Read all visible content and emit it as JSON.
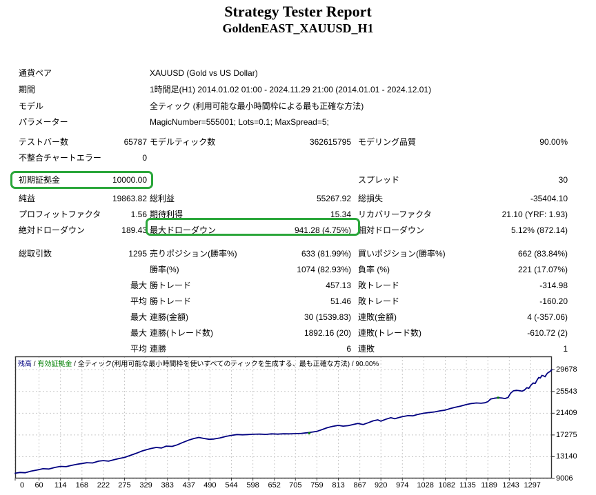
{
  "title": "Strategy Tester Report",
  "subtitle": "GoldenEAST_XAUUSD_H1",
  "colors": {
    "highlight_green": "#2aa63a",
    "balance_line": "#000080",
    "equity_green": "#008000",
    "grid": "#c9c9c9",
    "chart_border": "#333333"
  },
  "info_rows": [
    {
      "label": "通貨ペア",
      "value": "XAUUSD (Gold vs US Dollar)"
    },
    {
      "label": "期間",
      "value": "1時間足(H1) 2014.01.02 01:00 - 2024.11.29 21:00 (2014.01.01 - 2024.12.01)"
    },
    {
      "label": "モデル",
      "value": "全ティック (利用可能な最小時間枠による最も正確な方法)"
    },
    {
      "label": "パラメーター",
      "value": "MagicNumber=555001; Lots=0.1; MaxSpread=5;"
    }
  ],
  "stat_rows": [
    {
      "cells": [
        "テストバー数",
        "65787",
        "モデルティック数",
        "362615795",
        "モデリング品質",
        "90.00%"
      ],
      "gap": ""
    },
    {
      "cells": [
        "不整合チャートエラー",
        "0",
        "",
        "",
        "",
        ""
      ],
      "gap": ""
    },
    {
      "cells": [
        "初期証拠金",
        "10000.00",
        "",
        "",
        "スプレッド",
        "30"
      ],
      "gap": "gap9"
    },
    {
      "cells": [
        "純益",
        "19863.82",
        "総利益",
        "55267.92",
        "総損失",
        "-35404.10"
      ],
      "gap": "gap4"
    },
    {
      "cells": [
        "プロフィットファクタ",
        "1.56",
        "期待利得",
        "15.34",
        "リカバリーファクタ",
        "21.10 (YRF: 1.93)"
      ],
      "gap": ""
    },
    {
      "cells": [
        "絶対ドローダウン",
        "189.43",
        "最大ドローダウン",
        "941.28 (4.75%)",
        "相対ドローダウン",
        "5.12% (872.14)"
      ],
      "gap": ""
    },
    {
      "cells": [
        "総取引数",
        "1295",
        "売りポジション(勝率%)",
        "633 (81.99%)",
        "買いポジション(勝率%)",
        "662 (83.84%)"
      ],
      "gap": "gap11"
    },
    {
      "cells": [
        "",
        "",
        "勝率(%)",
        "1074 (82.93%)",
        "負率 (%)",
        "221 (17.07%)"
      ],
      "gap": ""
    },
    {
      "cells": [
        "",
        "最大",
        "勝トレード",
        "457.13",
        "敗トレード",
        "-314.98"
      ],
      "gap": ""
    },
    {
      "cells": [
        "",
        "平均",
        "勝トレード",
        "51.46",
        "敗トレード",
        "-160.20"
      ],
      "gap": ""
    },
    {
      "cells": [
        "",
        "最大",
        "連勝(金額)",
        "30 (1539.83)",
        "連敗(金額)",
        "4 (-357.06)"
      ],
      "gap": ""
    },
    {
      "cells": [
        "",
        "最大",
        "連勝(トレード数)",
        "1892.16 (20)",
        "連敗(トレード数)",
        "-610.72 (2)"
      ],
      "gap": ""
    },
    {
      "cells": [
        "",
        "平均",
        "連勝",
        "6",
        "連敗",
        "1"
      ],
      "gap": ""
    }
  ],
  "chart_data": {
    "type": "line",
    "title_segments": [
      {
        "text": "残高",
        "color": "#000080"
      },
      {
        "text": " / ",
        "color": "#000000"
      },
      {
        "text": "有効証拠金",
        "color": "#008000"
      },
      {
        "text": " / ",
        "color": "#000000"
      },
      {
        "text": "全ティック(利用可能な最小時間枠を使いすべてのティックを生成する、最も正確な方法) / 90.00%",
        "color": "#000000"
      }
    ],
    "xlabel": "",
    "ylabel": "",
    "x_ticks": [
      0,
      60,
      114,
      168,
      222,
      275,
      329,
      383,
      437,
      490,
      544,
      598,
      652,
      705,
      759,
      813,
      867,
      920,
      974,
      1028,
      1082,
      1135,
      1189,
      1243,
      1297
    ],
    "y_ticks": [
      9006,
      13140,
      17275,
      21409,
      25543,
      29678
    ],
    "x_range": [
      0,
      1350
    ],
    "y_range": [
      9006,
      32200
    ],
    "grid": "dashed",
    "series": [
      {
        "name": "残高",
        "color": "#000080",
        "points": [
          [
            0,
            10000
          ],
          [
            12,
            10150
          ],
          [
            25,
            10100
          ],
          [
            40,
            10400
          ],
          [
            55,
            10600
          ],
          [
            70,
            10850
          ],
          [
            85,
            10800
          ],
          [
            100,
            11100
          ],
          [
            114,
            11300
          ],
          [
            128,
            11250
          ],
          [
            142,
            11500
          ],
          [
            156,
            11700
          ],
          [
            168,
            11850
          ],
          [
            180,
            12000
          ],
          [
            195,
            11950
          ],
          [
            210,
            12300
          ],
          [
            222,
            12400
          ],
          [
            235,
            12300
          ],
          [
            250,
            12600
          ],
          [
            262,
            12800
          ],
          [
            275,
            13000
          ],
          [
            290,
            13400
          ],
          [
            305,
            13800
          ],
          [
            318,
            14200
          ],
          [
            329,
            14450
          ],
          [
            342,
            14700
          ],
          [
            355,
            14900
          ],
          [
            368,
            14800
          ],
          [
            380,
            15150
          ],
          [
            395,
            15100
          ],
          [
            408,
            15400
          ],
          [
            420,
            15800
          ],
          [
            437,
            16300
          ],
          [
            450,
            16600
          ],
          [
            462,
            16800
          ],
          [
            475,
            16600
          ],
          [
            488,
            16450
          ],
          [
            500,
            16500
          ],
          [
            515,
            16700
          ],
          [
            530,
            17000
          ],
          [
            544,
            17200
          ],
          [
            558,
            17350
          ],
          [
            572,
            17300
          ],
          [
            586,
            17350
          ],
          [
            598,
            17400
          ],
          [
            615,
            17450
          ],
          [
            630,
            17380
          ],
          [
            645,
            17480
          ],
          [
            660,
            17430
          ],
          [
            675,
            17500
          ],
          [
            690,
            17480
          ],
          [
            705,
            17520
          ],
          [
            720,
            17580
          ],
          [
            735,
            17700
          ],
          [
            750,
            17850
          ],
          [
            759,
            17950
          ],
          [
            772,
            18300
          ],
          [
            785,
            18650
          ],
          [
            798,
            18900
          ],
          [
            813,
            19100
          ],
          [
            825,
            18950
          ],
          [
            838,
            19050
          ],
          [
            850,
            19250
          ],
          [
            862,
            19450
          ],
          [
            875,
            19250
          ],
          [
            888,
            19600
          ],
          [
            900,
            19950
          ],
          [
            912,
            20150
          ],
          [
            920,
            19900
          ],
          [
            932,
            20250
          ],
          [
            945,
            20550
          ],
          [
            955,
            20350
          ],
          [
            966,
            20600
          ],
          [
            974,
            20750
          ],
          [
            988,
            20950
          ],
          [
            1000,
            20900
          ],
          [
            1012,
            21150
          ],
          [
            1028,
            21400
          ],
          [
            1042,
            21550
          ],
          [
            1055,
            21650
          ],
          [
            1068,
            21850
          ],
          [
            1082,
            22000
          ],
          [
            1095,
            22300
          ],
          [
            1108,
            22550
          ],
          [
            1120,
            22750
          ],
          [
            1135,
            23050
          ],
          [
            1148,
            23250
          ],
          [
            1160,
            23350
          ],
          [
            1172,
            23300
          ],
          [
            1182,
            23400
          ],
          [
            1189,
            23600
          ],
          [
            1196,
            24100
          ],
          [
            1205,
            24250
          ],
          [
            1215,
            24350
          ],
          [
            1224,
            24300
          ],
          [
            1232,
            24200
          ],
          [
            1240,
            24400
          ],
          [
            1246,
            25200
          ],
          [
            1253,
            25650
          ],
          [
            1260,
            25750
          ],
          [
            1268,
            25700
          ],
          [
            1275,
            25600
          ],
          [
            1281,
            25800
          ],
          [
            1287,
            26250
          ],
          [
            1292,
            26150
          ],
          [
            1297,
            26700
          ],
          [
            1303,
            27150
          ],
          [
            1308,
            27050
          ],
          [
            1313,
            27750
          ],
          [
            1317,
            28200
          ],
          [
            1321,
            28100
          ],
          [
            1325,
            28600
          ],
          [
            1329,
            28500
          ],
          [
            1333,
            28350
          ],
          [
            1337,
            28850
          ],
          [
            1341,
            29150
          ],
          [
            1345,
            29300
          ],
          [
            1350,
            29680
          ]
        ]
      }
    ],
    "equity_marks": [
      [
        740,
        17600
      ],
      [
        1215,
        24350
      ]
    ]
  }
}
